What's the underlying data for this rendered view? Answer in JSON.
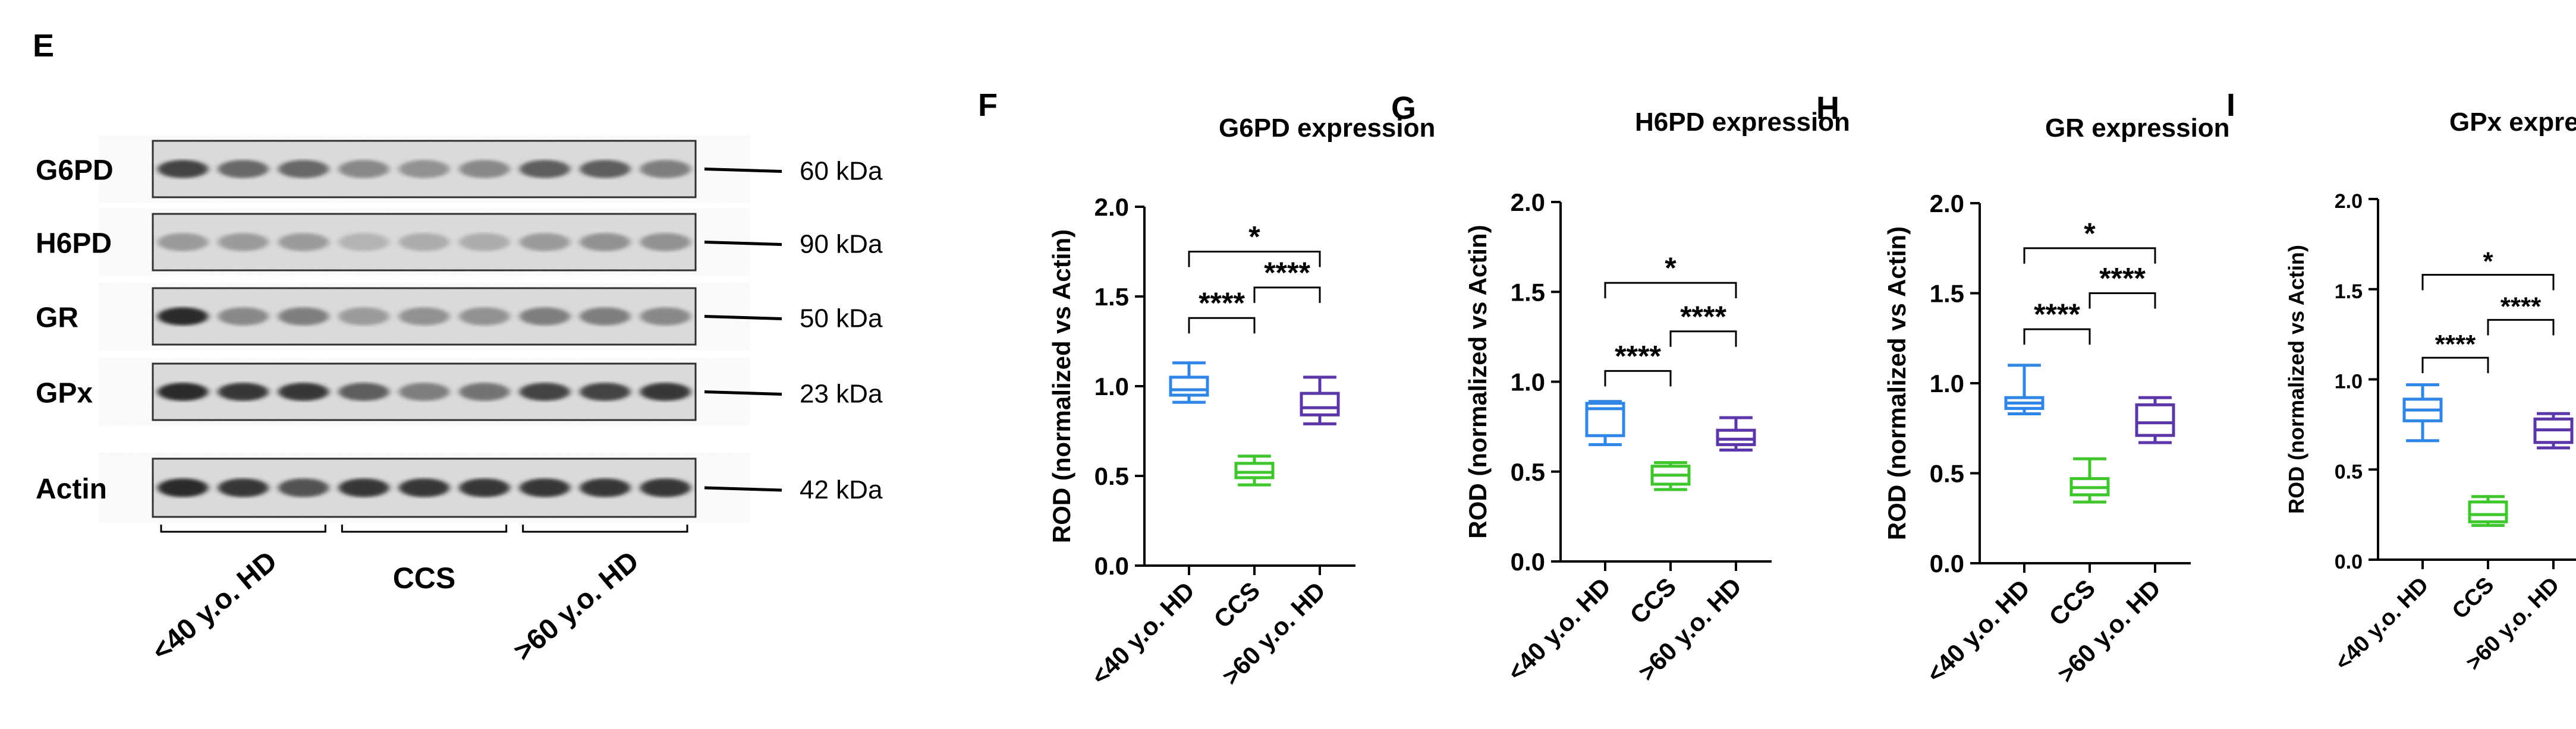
{
  "western_blot": {
    "panel_label": "E",
    "lanes_per_group": 3,
    "bands": [
      {
        "name": "G6PD",
        "kda": "60 kDa"
      },
      {
        "name": "H6PD",
        "kda": "90 kDa"
      },
      {
        "name": "GR",
        "kda": "50 kDa"
      },
      {
        "name": "GPx",
        "kda": "23 kDa"
      },
      {
        "name": "Actin",
        "kda": "42 kDa"
      }
    ],
    "groups": [
      "<40 y.o. HD",
      "CCS",
      ">60 y.o. HD"
    ]
  },
  "colors": {
    "group1": "#2f86e6",
    "group2": "#3ec62c",
    "group3": "#5a36a8"
  },
  "chart_data": [
    {
      "panel_label": "F",
      "type": "box",
      "title": "G6PD expression",
      "ylabel": "ROD (normalized vs Actin)",
      "ylim": [
        0,
        2.0
      ],
      "yticks": [
        "0.0",
        "0.5",
        "1.0",
        "1.5",
        "2.0"
      ],
      "categories": [
        "<40 y.o. HD",
        "CCS",
        ">60 y.o. HD"
      ],
      "boxes": [
        {
          "min": 0.91,
          "q1": 0.95,
          "median": 0.98,
          "q3": 1.05,
          "max": 1.13
        },
        {
          "min": 0.45,
          "q1": 0.49,
          "median": 0.52,
          "q3": 0.57,
          "max": 0.61
        },
        {
          "min": 0.79,
          "q1": 0.84,
          "median": 0.88,
          "q3": 0.96,
          "max": 1.05
        }
      ],
      "significance": [
        {
          "from": 0,
          "to": 1,
          "label": "****",
          "y": 1.38
        },
        {
          "from": 1,
          "to": 2,
          "label": "****",
          "y": 1.55
        },
        {
          "from": 0,
          "to": 2,
          "label": "*",
          "y": 1.75
        }
      ]
    },
    {
      "panel_label": "G",
      "type": "box",
      "title": "H6PD expression",
      "ylabel": "ROD (normalized vs Actin)",
      "ylim": [
        0,
        2.0
      ],
      "yticks": [
        "0.0",
        "0.5",
        "1.0",
        "1.5",
        "2.0"
      ],
      "categories": [
        "<40 y.o. HD",
        "CCS",
        ">60 y.o. HD"
      ],
      "boxes": [
        {
          "min": 0.65,
          "q1": 0.7,
          "median": 0.85,
          "q3": 0.88,
          "max": 0.89
        },
        {
          "min": 0.4,
          "q1": 0.43,
          "median": 0.48,
          "q3": 0.53,
          "max": 0.55
        },
        {
          "min": 0.62,
          "q1": 0.65,
          "median": 0.68,
          "q3": 0.73,
          "max": 0.8
        }
      ],
      "significance": [
        {
          "from": 0,
          "to": 1,
          "label": "****",
          "y": 1.06
        },
        {
          "from": 1,
          "to": 2,
          "label": "****",
          "y": 1.28
        },
        {
          "from": 0,
          "to": 2,
          "label": "*",
          "y": 1.55
        }
      ]
    },
    {
      "panel_label": "H",
      "type": "box",
      "title": "GR expression",
      "ylabel": "ROD (normalized vs Actin)",
      "ylim": [
        0,
        2.0
      ],
      "yticks": [
        "0.0",
        "0.5",
        "1.0",
        "1.5",
        "2.0"
      ],
      "categories": [
        "<40 y.o. HD",
        "CCS",
        ">60 y.o. HD"
      ],
      "boxes": [
        {
          "min": 0.83,
          "q1": 0.86,
          "median": 0.89,
          "q3": 0.92,
          "max": 1.1
        },
        {
          "min": 0.34,
          "q1": 0.38,
          "median": 0.42,
          "q3": 0.47,
          "max": 0.58
        },
        {
          "min": 0.67,
          "q1": 0.71,
          "median": 0.78,
          "q3": 0.88,
          "max": 0.92
        }
      ],
      "significance": [
        {
          "from": 0,
          "to": 1,
          "label": "****",
          "y": 1.3
        },
        {
          "from": 1,
          "to": 2,
          "label": "****",
          "y": 1.5
        },
        {
          "from": 0,
          "to": 2,
          "label": "*",
          "y": 1.75
        }
      ]
    },
    {
      "panel_label": "I",
      "type": "box",
      "title": "GPx expression",
      "ylabel": "ROD (normalized vs Actin)",
      "ylim": [
        0,
        2.0
      ],
      "yticks": [
        "0.0",
        "0.5",
        "1.0",
        "1.5",
        "2.0"
      ],
      "categories": [
        "<40 y.o. HD",
        "CCS",
        ">60 y.o. HD"
      ],
      "boxes": [
        {
          "min": 0.66,
          "q1": 0.77,
          "median": 0.83,
          "q3": 0.89,
          "max": 0.97
        },
        {
          "min": 0.19,
          "q1": 0.21,
          "median": 0.25,
          "q3": 0.32,
          "max": 0.35
        },
        {
          "min": 0.62,
          "q1": 0.65,
          "median": 0.72,
          "q3": 0.78,
          "max": 0.81
        }
      ],
      "significance": [
        {
          "from": 0,
          "to": 1,
          "label": "****",
          "y": 1.12
        },
        {
          "from": 1,
          "to": 2,
          "label": "****",
          "y": 1.33
        },
        {
          "from": 0,
          "to": 2,
          "label": "*",
          "y": 1.58
        }
      ]
    }
  ]
}
